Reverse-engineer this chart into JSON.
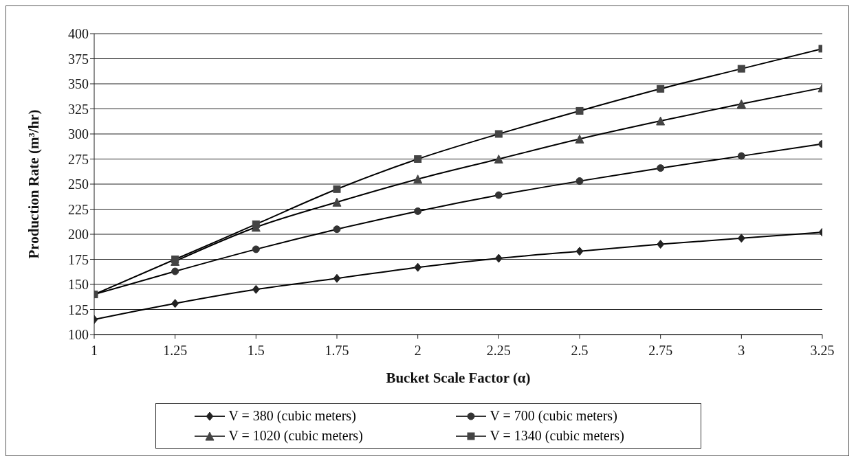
{
  "chart_data": {
    "type": "line",
    "xlabel": "Bucket Scale Factor (α)",
    "ylabel": "Production Rate (m³/hr)",
    "x": [
      1,
      1.25,
      1.5,
      1.75,
      2,
      2.25,
      2.5,
      2.75,
      3,
      3.25
    ],
    "xlim": [
      1,
      3.25
    ],
    "xticks": [
      1,
      1.25,
      1.5,
      1.75,
      2,
      2.25,
      2.5,
      2.75,
      3,
      3.25
    ],
    "ylim": [
      100,
      400
    ],
    "yticks": [
      100,
      125,
      150,
      175,
      200,
      225,
      250,
      275,
      300,
      325,
      350,
      375,
      400
    ],
    "grid": "y",
    "legend": "bottom",
    "line_style": "solid",
    "series": [
      {
        "name": "V = 380 (cubic meters)",
        "color": "#222222",
        "marker": "diamond",
        "values": [
          115,
          131,
          145,
          156,
          167,
          176,
          183,
          190,
          196,
          202
        ]
      },
      {
        "name": "V = 700 (cubic meters)",
        "color": "#333333",
        "marker": "circle",
        "values": [
          140,
          163,
          185,
          205,
          223,
          239,
          253,
          266,
          278,
          290
        ]
      },
      {
        "name": "V = 1020 (cubic meters)",
        "color": "#444444",
        "marker": "triangle",
        "values": [
          null,
          173,
          207,
          232,
          255,
          275,
          295,
          313,
          330,
          346
        ]
      },
      {
        "name": "V = 1340 (cubic meters)",
        "color": "#444444",
        "marker": "square",
        "values": [
          140,
          175,
          210,
          245,
          275,
          300,
          323,
          345,
          365,
          385
        ]
      }
    ]
  }
}
